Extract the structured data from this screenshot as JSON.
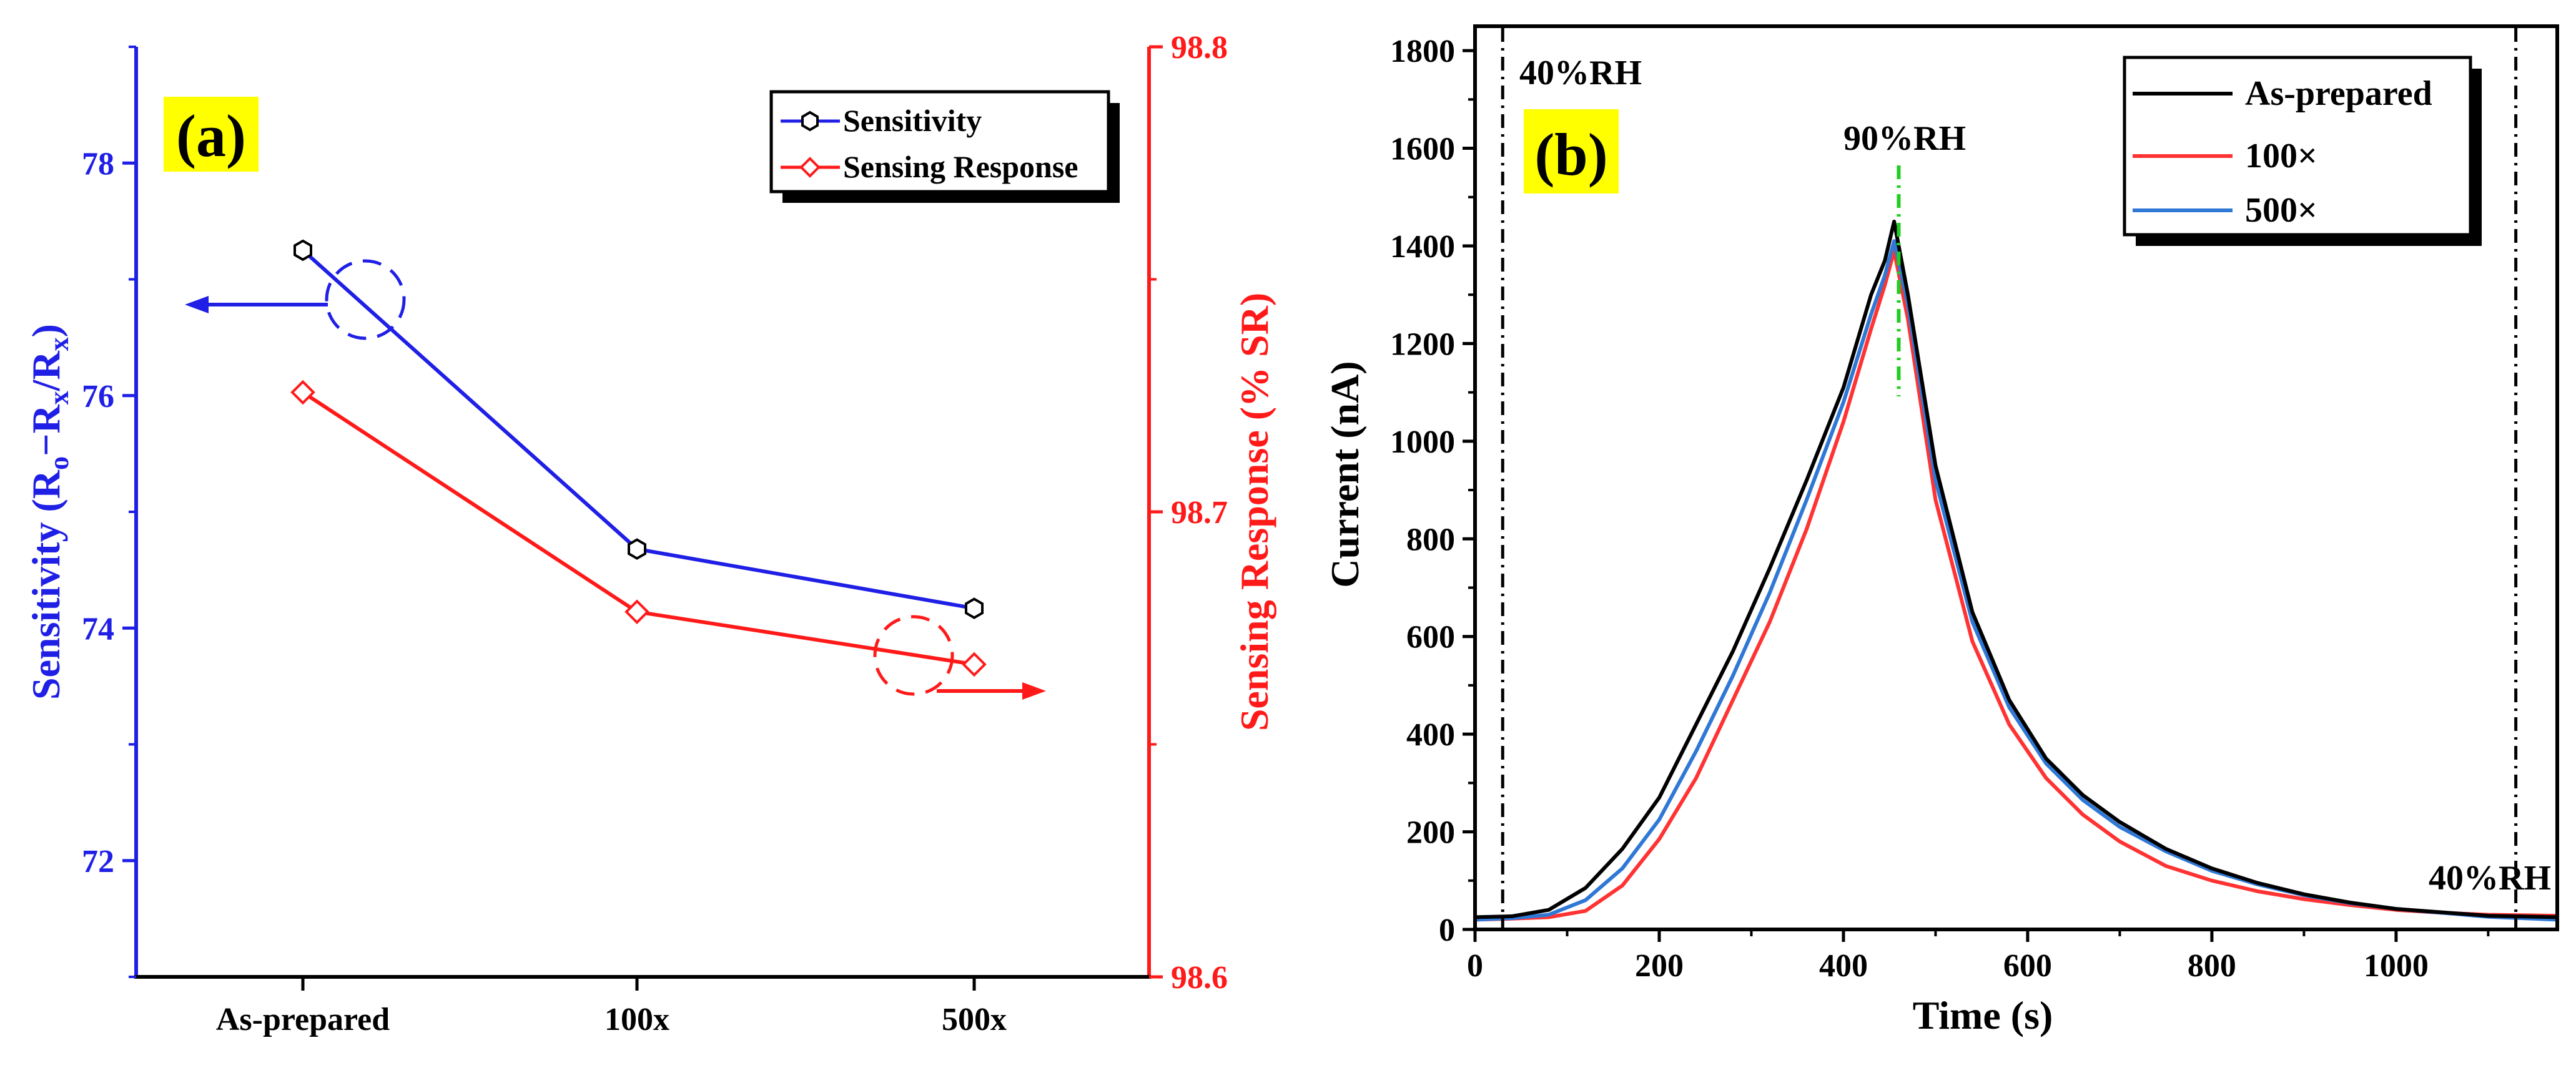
{
  "chart_data": [
    {
      "panel": "(a)",
      "type": "line",
      "categories": [
        "As-prepared",
        "100x",
        "500x"
      ],
      "series": [
        {
          "name": "Sensitivity",
          "axis": "left",
          "color": "#1f1fe6",
          "marker": "hexagon",
          "values": [
            77.25,
            74.68,
            74.17
          ]
        },
        {
          "name": "Sensing Response",
          "axis": "right",
          "color": "#ff1a1a",
          "marker": "diamond",
          "values": [
            98.7257,
            98.6785,
            98.6672
          ]
        }
      ],
      "ylabel": "Sensitivity (R₀−Rₓ/Rₓ)",
      "ylabel_parts": {
        "pre": "Sensitivity (R",
        "sub1": "o",
        "mid": "−R",
        "sub2": "x",
        "slash": "/R",
        "sub3": "x",
        "post": ")"
      },
      "y2label": "Sensing Response (% SR)",
      "ylim": [
        71,
        79
      ],
      "yticks": [
        72,
        74,
        76,
        78
      ],
      "y2lim": [
        98.6,
        98.8
      ],
      "y2ticks": [
        "98.6",
        "98.7",
        "98.8"
      ],
      "legend": [
        "Sensitivity",
        "Sensing Response"
      ],
      "legend_position": "top-right"
    },
    {
      "panel": "(b)",
      "type": "line",
      "xlabel": "Time (s)",
      "ylabel": "Current (nA)",
      "xlim": [
        0,
        1175
      ],
      "ylim": [
        0,
        1850
      ],
      "xticks": [
        0,
        200,
        400,
        600,
        800,
        1000
      ],
      "yticks": [
        0,
        200,
        400,
        600,
        800,
        1000,
        1200,
        1400,
        1600,
        1800
      ],
      "series": [
        {
          "name": "As-prepared",
          "color": "#000000",
          "x": [
            0,
            40,
            80,
            120,
            160,
            200,
            240,
            280,
            320,
            360,
            400,
            430,
            445,
            455,
            470,
            500,
            540,
            580,
            620,
            660,
            700,
            750,
            800,
            850,
            900,
            950,
            1000,
            1050,
            1100,
            1175
          ],
          "y": [
            25,
            27,
            40,
            85,
            165,
            270,
            420,
            570,
            740,
            920,
            1110,
            1300,
            1370,
            1450,
            1300,
            950,
            650,
            470,
            350,
            275,
            220,
            165,
            125,
            95,
            72,
            55,
            42,
            35,
            28,
            25
          ]
        },
        {
          "name": "100×",
          "color": "#ff3333",
          "x": [
            0,
            40,
            80,
            120,
            160,
            200,
            240,
            280,
            320,
            360,
            400,
            430,
            445,
            455,
            470,
            500,
            540,
            580,
            620,
            660,
            700,
            750,
            800,
            850,
            900,
            950,
            1000,
            1050,
            1100,
            1175
          ],
          "y": [
            20,
            22,
            25,
            38,
            90,
            185,
            310,
            470,
            630,
            820,
            1040,
            1230,
            1320,
            1390,
            1250,
            880,
            590,
            420,
            310,
            235,
            180,
            130,
            100,
            78,
            62,
            50,
            40,
            34,
            30,
            28
          ]
        },
        {
          "name": "500×",
          "color": "#2f78d6",
          "x": [
            0,
            40,
            80,
            120,
            160,
            200,
            240,
            280,
            320,
            360,
            400,
            430,
            445,
            455,
            470,
            500,
            540,
            580,
            620,
            660,
            700,
            750,
            800,
            850,
            900,
            950,
            1000,
            1050,
            1100,
            1175
          ],
          "y": [
            20,
            23,
            30,
            60,
            125,
            225,
            365,
            520,
            690,
            880,
            1080,
            1260,
            1340,
            1410,
            1280,
            920,
            630,
            455,
            340,
            265,
            210,
            160,
            120,
            92,
            70,
            54,
            42,
            34,
            26,
            20
          ]
        }
      ],
      "legend": [
        "As-prepared",
        "100×",
        "500×"
      ],
      "legend_position": "top-right",
      "annotations": {
        "start": {
          "text": "40%RH",
          "x": 30
        },
        "peak": {
          "text": "90%RH",
          "x": 460
        },
        "end": {
          "text": "40%RH",
          "x": 1130
        }
      }
    }
  ]
}
